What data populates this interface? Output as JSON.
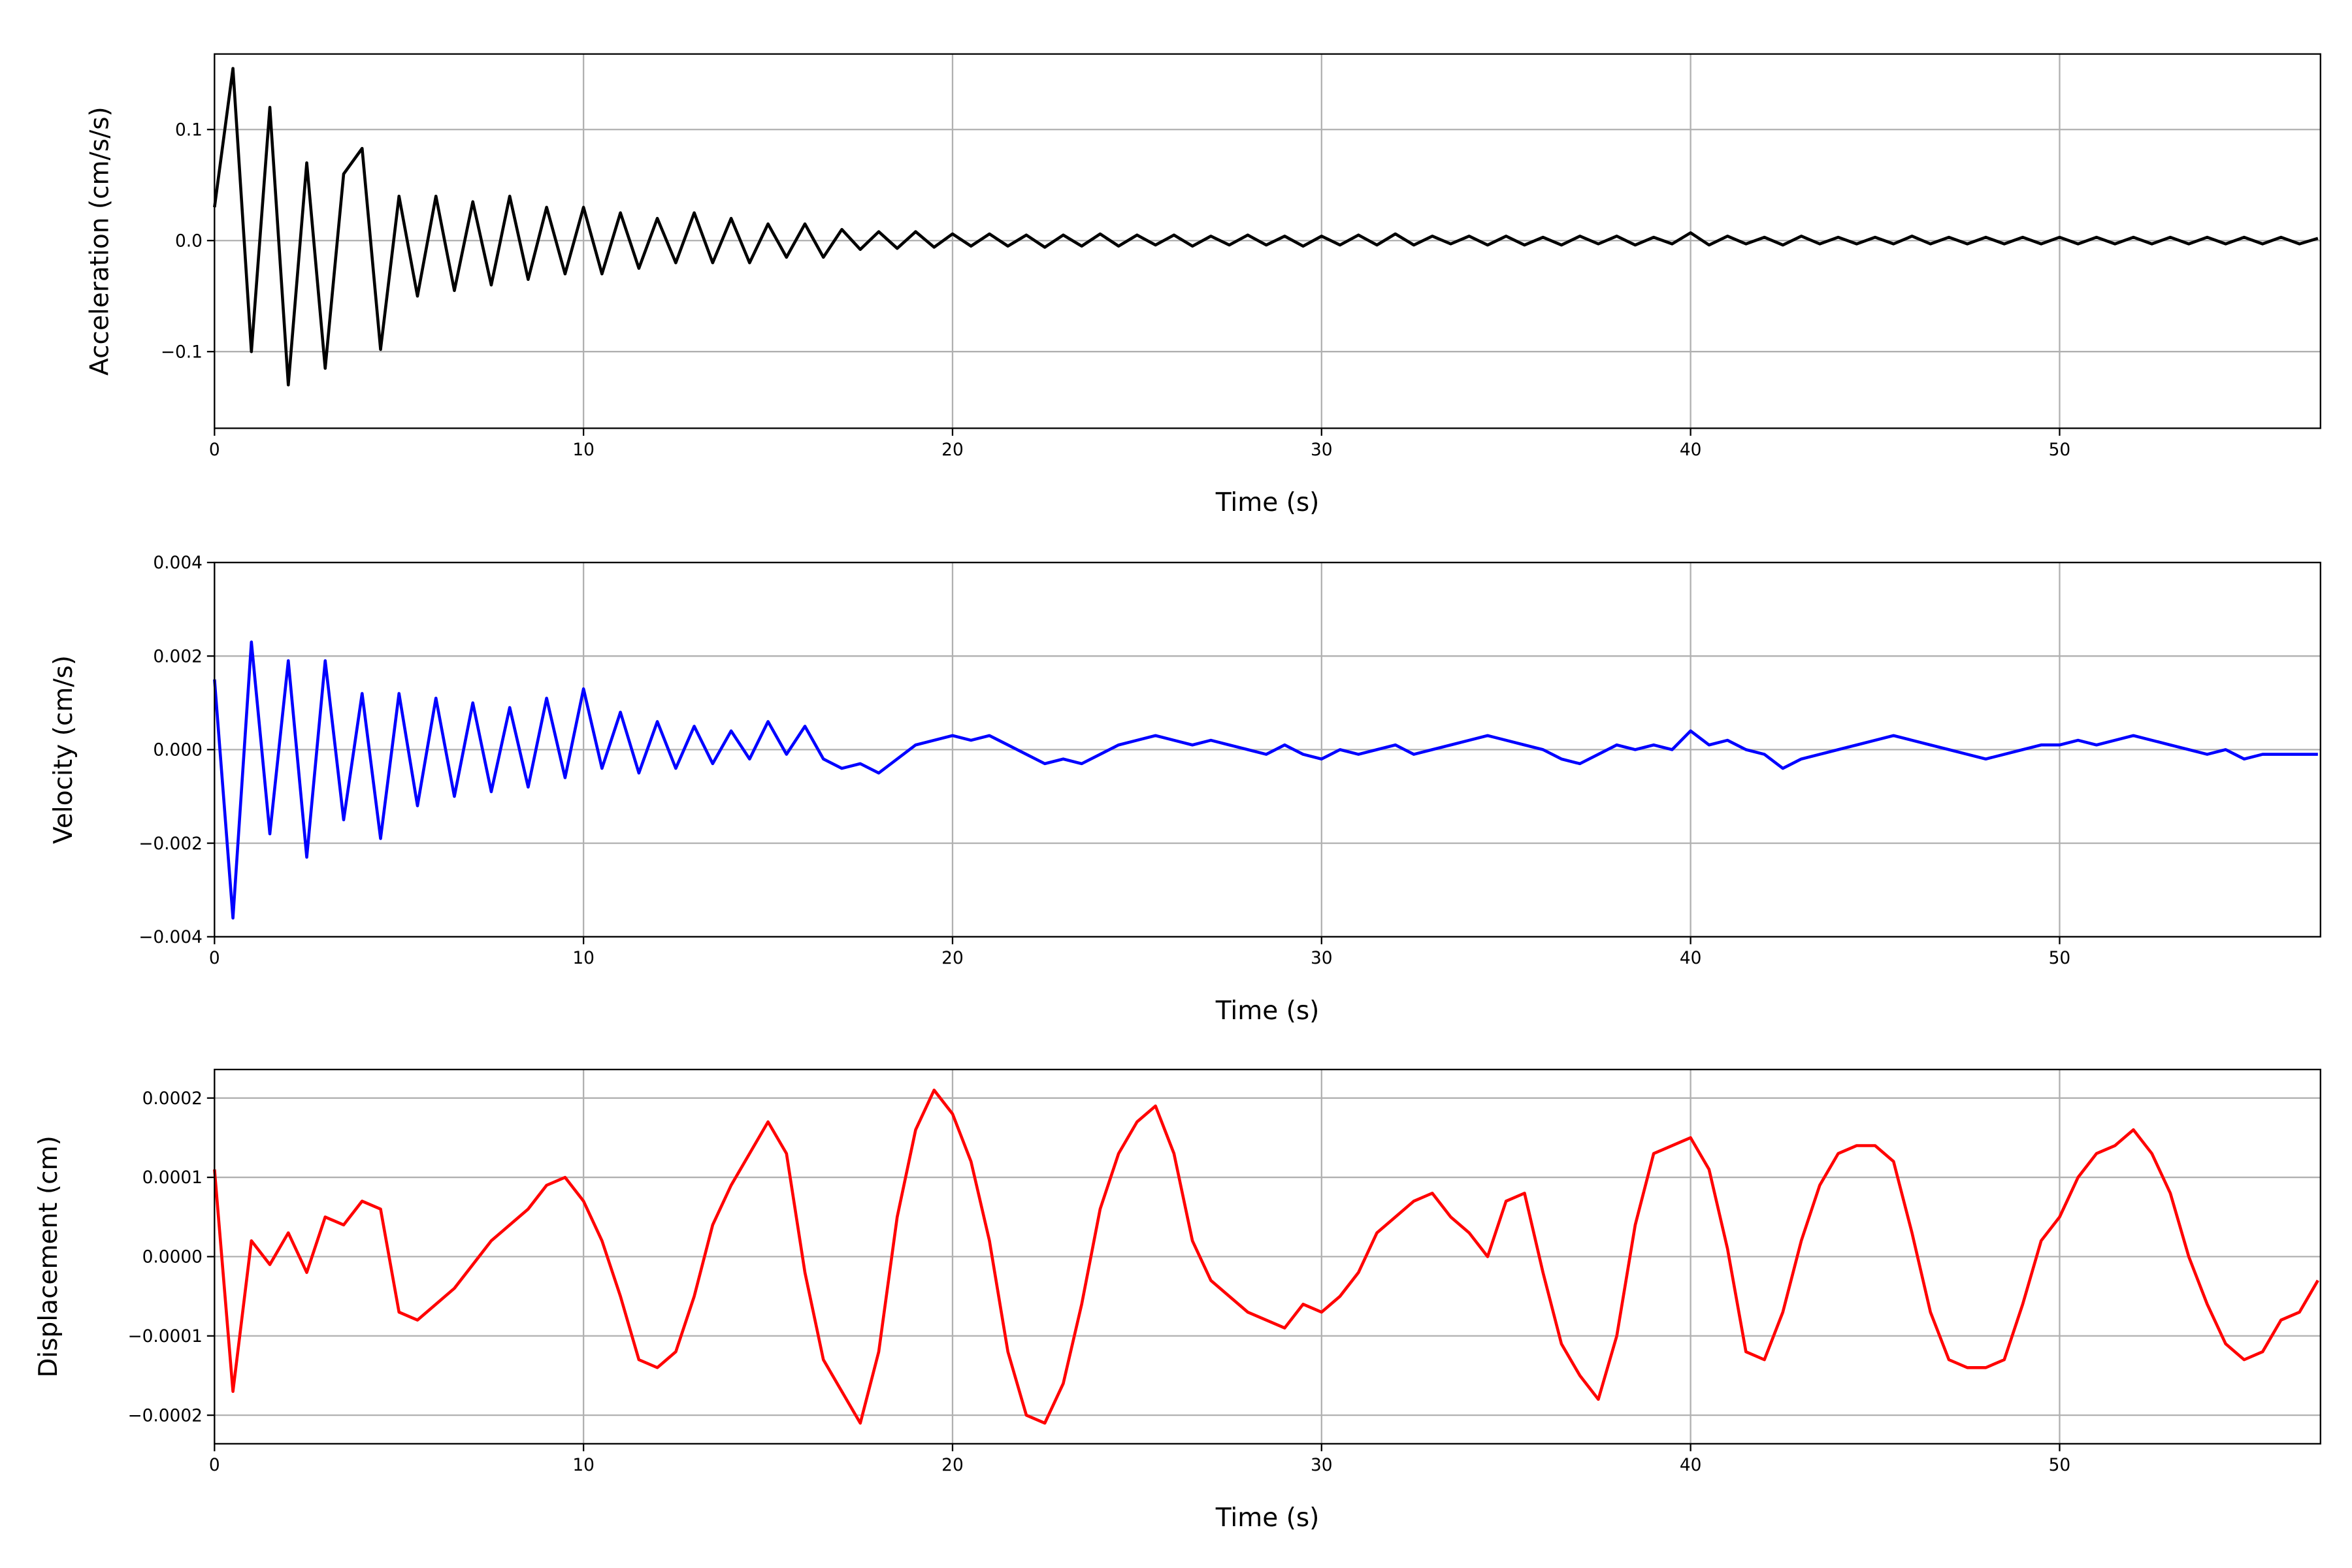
{
  "chart_data": [
    {
      "type": "line",
      "ylabel": "Acceleration (cm/s/s)",
      "xlabel": "Time (s)",
      "color": "#000000",
      "grid": true,
      "xlim": [
        0,
        57.07
      ],
      "xticks": [
        0,
        10,
        20,
        30,
        40,
        50
      ],
      "ylim": [
        -0.169,
        0.168
      ],
      "yticks": [
        {
          "value": -0.1,
          "label": "−0.1"
        },
        {
          "value": 0,
          "label": "0.0"
        },
        {
          "value": 0.1,
          "label": "0.1"
        }
      ],
      "x": [
        0,
        0.5,
        1,
        1.5,
        2,
        2.5,
        3,
        3.5,
        4,
        4.5,
        5,
        5.5,
        6,
        6.5,
        7,
        7.5,
        8,
        8.5,
        9,
        9.5,
        10,
        10.5,
        11,
        11.5,
        12,
        12.5,
        13,
        13.5,
        14,
        14.5,
        15,
        15.5,
        16,
        16.5,
        17,
        17.5,
        18,
        18.5,
        19,
        19.5,
        20,
        20.5,
        21,
        21.5,
        22,
        22.5,
        23,
        23.5,
        24,
        24.5,
        25,
        25.5,
        26,
        26.5,
        27,
        27.5,
        28,
        28.5,
        29,
        29.5,
        30,
        30.5,
        31,
        31.5,
        32,
        32.5,
        33,
        33.5,
        34,
        34.5,
        35,
        35.5,
        36,
        36.5,
        37,
        37.5,
        38,
        38.5,
        39,
        39.5,
        40,
        40.5,
        41,
        41.5,
        42,
        42.5,
        43,
        43.5,
        44,
        44.5,
        45,
        45.5,
        46,
        46.5,
        47,
        47.5,
        48,
        48.5,
        49,
        49.5,
        50,
        50.5,
        51,
        51.5,
        52,
        52.5,
        53,
        53.5,
        54,
        54.5,
        55,
        55.5,
        56,
        56.5,
        57
      ],
      "values": [
        0.03,
        0.155,
        -0.1,
        0.12,
        -0.13,
        0.07,
        -0.115,
        0.06,
        0.083,
        -0.098,
        0.04,
        -0.05,
        0.04,
        -0.045,
        0.035,
        -0.04,
        0.04,
        -0.035,
        0.03,
        -0.03,
        0.03,
        -0.03,
        0.025,
        -0.025,
        0.02,
        -0.02,
        0.025,
        -0.02,
        0.02,
        -0.02,
        0.015,
        -0.015,
        0.015,
        -0.015,
        0.01,
        -0.008,
        0.008,
        -0.007,
        0.008,
        -0.006,
        0.006,
        -0.005,
        0.006,
        -0.005,
        0.005,
        -0.006,
        0.005,
        -0.005,
        0.006,
        -0.005,
        0.005,
        -0.004,
        0.005,
        -0.005,
        0.004,
        -0.004,
        0.005,
        -0.004,
        0.004,
        -0.005,
        0.004,
        -0.004,
        0.005,
        -0.004,
        0.006,
        -0.004,
        0.004,
        -0.003,
        0.004,
        -0.004,
        0.004,
        -0.004,
        0.003,
        -0.004,
        0.004,
        -0.003,
        0.004,
        -0.004,
        0.003,
        -0.003,
        0.007,
        -0.004,
        0.004,
        -0.003,
        0.003,
        -0.004,
        0.004,
        -0.003,
        0.003,
        -0.003,
        0.003,
        -0.003,
        0.004,
        -0.003,
        0.003,
        -0.003,
        0.003,
        -0.003,
        0.003,
        -0.003,
        0.003,
        -0.003,
        0.003,
        -0.003,
        0.003,
        -0.003,
        0.003,
        -0.003,
        0.003,
        -0.003,
        0.003,
        -0.003,
        0.003,
        -0.003,
        0.002
      ]
    },
    {
      "type": "line",
      "ylabel": "Velocity (cm/s)",
      "xlabel": "Time (s)",
      "color": "#0000ff",
      "grid": true,
      "xlim": [
        0,
        57.07
      ],
      "xticks": [
        0,
        10,
        20,
        30,
        40,
        50
      ],
      "ylim": [
        -0.004,
        0.004
      ],
      "yticks": [
        {
          "value": -0.004,
          "label": "−0.004"
        },
        {
          "value": -0.002,
          "label": "−0.002"
        },
        {
          "value": 0,
          "label": "0.000"
        },
        {
          "value": 0.002,
          "label": "0.002"
        },
        {
          "value": 0.004,
          "label": "0.004"
        }
      ],
      "x": [
        0,
        0.5,
        1,
        1.5,
        2,
        2.5,
        3,
        3.5,
        4,
        4.5,
        5,
        5.5,
        6,
        6.5,
        7,
        7.5,
        8,
        8.5,
        9,
        9.5,
        10,
        10.5,
        11,
        11.5,
        12,
        12.5,
        13,
        13.5,
        14,
        14.5,
        15,
        15.5,
        16,
        16.5,
        17,
        17.5,
        18,
        18.5,
        19,
        19.5,
        20,
        20.5,
        21,
        21.5,
        22,
        22.5,
        23,
        23.5,
        24,
        24.5,
        25,
        25.5,
        26,
        26.5,
        27,
        27.5,
        28,
        28.5,
        29,
        29.5,
        30,
        30.5,
        31,
        31.5,
        32,
        32.5,
        33,
        33.5,
        34,
        34.5,
        35,
        35.5,
        36,
        36.5,
        37,
        37.5,
        38,
        38.5,
        39,
        39.5,
        40,
        40.5,
        41,
        41.5,
        42,
        42.5,
        43,
        43.5,
        44,
        44.5,
        45,
        45.5,
        46,
        46.5,
        47,
        47.5,
        48,
        48.5,
        49,
        49.5,
        50,
        50.5,
        51,
        51.5,
        52,
        52.5,
        53,
        53.5,
        54,
        54.5,
        55,
        55.5,
        56,
        56.5,
        57
      ],
      "values": [
        0.0015,
        -0.0036,
        0.0023,
        -0.0018,
        0.0019,
        -0.0023,
        0.0019,
        -0.0015,
        0.0012,
        -0.0019,
        0.0012,
        -0.0012,
        0.0011,
        -0.001,
        0.001,
        -0.0009,
        0.0009,
        -0.0008,
        0.0011,
        -0.0006,
        0.0013,
        -0.0004,
        0.0008,
        -0.0005,
        0.0006,
        -0.0004,
        0.0005,
        -0.0003,
        0.0004,
        -0.0002,
        0.0006,
        -0.0001,
        0.0005,
        -0.0002,
        -0.0004,
        -0.0003,
        -0.0005,
        -0.0002,
        0.0001,
        0.0002,
        0.0003,
        0.0002,
        0.0003,
        0.0001,
        -0.0001,
        -0.0003,
        -0.0002,
        -0.0003,
        -0.0001,
        0.0001,
        0.0002,
        0.0003,
        0.0002,
        0.0001,
        0.0002,
        0.0001,
        0,
        -0.0001,
        0.0001,
        -0.0001,
        -0.0002,
        0,
        -0.0001,
        0,
        0.0001,
        -0.0001,
        0,
        0.0001,
        0.0002,
        0.0003,
        0.0002,
        0.0001,
        0,
        -0.0002,
        -0.0003,
        -0.0001,
        0.0001,
        0,
        0.0001,
        0,
        0.0004,
        0.0001,
        0.0002,
        0,
        -0.0001,
        -0.0004,
        -0.0002,
        -0.0001,
        0,
        0.0001,
        0.0002,
        0.0003,
        0.0002,
        0.0001,
        0,
        -0.0001,
        -0.0002,
        -0.0001,
        0,
        0.0001,
        0.0001,
        0.0002,
        0.0001,
        0.0002,
        0.0003,
        0.0002,
        0.0001,
        0,
        -0.0001,
        0,
        -0.0002,
        -0.0001,
        -0.0001,
        -0.0001,
        -0.0001
      ]
    },
    {
      "type": "line",
      "ylabel": "Displacement (cm)",
      "xlabel": "Time (s)",
      "color": "#ff0000",
      "grid": true,
      "xlim": [
        0,
        57.07
      ],
      "xticks": [
        0,
        10,
        20,
        30,
        40,
        50
      ],
      "ylim": [
        -0.000236,
        0.000236
      ],
      "yticks": [
        {
          "value": -0.0002,
          "label": "−0.0002"
        },
        {
          "value": -0.0001,
          "label": "−0.0001"
        },
        {
          "value": 0,
          "label": "0.0000"
        },
        {
          "value": 0.0001,
          "label": "0.0001"
        },
        {
          "value": 0.0002,
          "label": "0.0002"
        }
      ],
      "x": [
        0,
        0.5,
        1,
        1.5,
        2,
        2.5,
        3,
        3.5,
        4,
        4.5,
        5,
        5.5,
        6,
        6.5,
        7,
        7.5,
        8,
        8.5,
        9,
        9.5,
        10,
        10.5,
        11,
        11.5,
        12,
        12.5,
        13,
        13.5,
        14,
        14.5,
        15,
        15.5,
        16,
        16.5,
        17,
        17.5,
        18,
        18.5,
        19,
        19.5,
        20,
        20.5,
        21,
        21.5,
        22,
        22.5,
        23,
        23.5,
        24,
        24.5,
        25,
        25.5,
        26,
        26.5,
        27,
        27.5,
        28,
        28.5,
        29,
        29.5,
        30,
        30.5,
        31,
        31.5,
        32,
        32.5,
        33,
        33.5,
        34,
        34.5,
        35,
        35.5,
        36,
        36.5,
        37,
        37.5,
        38,
        38.5,
        39,
        39.5,
        40,
        40.5,
        41,
        41.5,
        42,
        42.5,
        43,
        43.5,
        44,
        44.5,
        45,
        45.5,
        46,
        46.5,
        47,
        47.5,
        48,
        48.5,
        49,
        49.5,
        50,
        50.5,
        51,
        51.5,
        52,
        52.5,
        53,
        53.5,
        54,
        54.5,
        55,
        55.5,
        56,
        56.5,
        57
      ],
      "values": [
        0.00011,
        -0.00017,
        2e-05,
        -1e-05,
        3e-05,
        -2e-05,
        5e-05,
        4e-05,
        7e-05,
        6e-05,
        -7e-05,
        -8e-05,
        -6e-05,
        -4e-05,
        -1e-05,
        2e-05,
        4e-05,
        6e-05,
        9e-05,
        0.0001,
        7e-05,
        2e-05,
        -5e-05,
        -0.00013,
        -0.00014,
        -0.00012,
        -5e-05,
        4e-05,
        9e-05,
        0.00013,
        0.00017,
        0.00013,
        -2e-05,
        -0.00013,
        -0.00017,
        -0.00021,
        -0.00012,
        5e-05,
        0.00016,
        0.00021,
        0.00018,
        0.00012,
        2e-05,
        -0.00012,
        -0.0002,
        -0.00021,
        -0.00016,
        -6e-05,
        6e-05,
        0.00013,
        0.00017,
        0.00019,
        0.00013,
        2e-05,
        -3e-05,
        -5e-05,
        -7e-05,
        -8e-05,
        -9e-05,
        -6e-05,
        -7e-05,
        -5e-05,
        -2e-05,
        3e-05,
        5e-05,
        7e-05,
        8e-05,
        5e-05,
        3e-05,
        0,
        7e-05,
        8e-05,
        -2e-05,
        -0.00011,
        -0.00015,
        -0.00018,
        -0.0001,
        4e-05,
        0.00013,
        0.00014,
        0.00015,
        0.00011,
        1e-05,
        -0.00012,
        -0.00013,
        -7e-05,
        2e-05,
        9e-05,
        0.00013,
        0.00014,
        0.00014,
        0.00012,
        3e-05,
        -7e-05,
        -0.00013,
        -0.00014,
        -0.00014,
        -0.00013,
        -6e-05,
        2e-05,
        5e-05,
        0.0001,
        0.00013,
        0.00014,
        0.00016,
        0.00013,
        8e-05,
        0,
        -6e-05,
        -0.00011,
        -0.00013,
        -0.00012,
        -8e-05,
        -7e-05,
        -3e-05
      ]
    }
  ]
}
